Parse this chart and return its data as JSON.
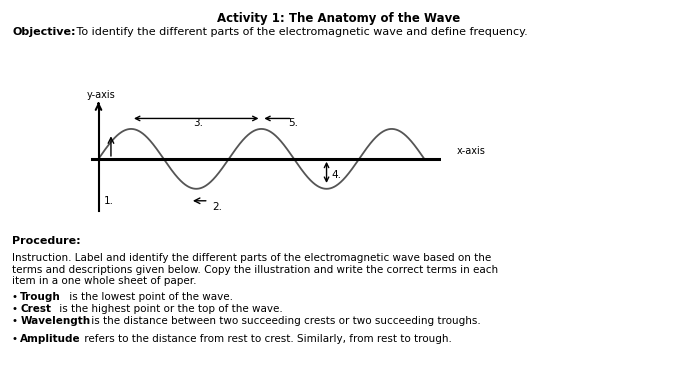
{
  "title": "Activity 1: The Anatomy of the Wave",
  "objective_bold": "Objective:",
  "objective_text": " To identify the different parts of the electromagnetic wave and define frequency.",
  "procedure_bold": "Procedure:",
  "procedure_text": "Instruction. Label and identify the different parts of the electromagnetic wave based on the\nterms and descriptions given below. Copy the illustration and write the correct terms in each\nitem in a one whole sheet of paper.",
  "bullets": [
    [
      "• ",
      "Trough",
      " is the lowest point of the wave."
    ],
    [
      "• ",
      "Crest",
      " is the highest point or the top of the wave."
    ],
    [
      "• ",
      "Wavelength",
      " is the distance between two succeeding crests or two succeeding troughs."
    ],
    [
      "• ",
      "Amplitude",
      " refers to the distance from rest to crest. Similarly, from rest to trough."
    ]
  ],
  "wave_color": "#555555",
  "axis_color": "#000000",
  "background_color": "#ffffff",
  "label_1": "1.",
  "label_2": "2.",
  "label_3": "3.",
  "label_4": "4.",
  "label_5": "5.",
  "xaxis_label": "x-axis",
  "yaxis_label": "y-axis",
  "wave_xlim": [
    -0.5,
    16.5
  ],
  "wave_ylim": [
    -1.9,
    2.2
  ],
  "wave_periods": 2.5
}
